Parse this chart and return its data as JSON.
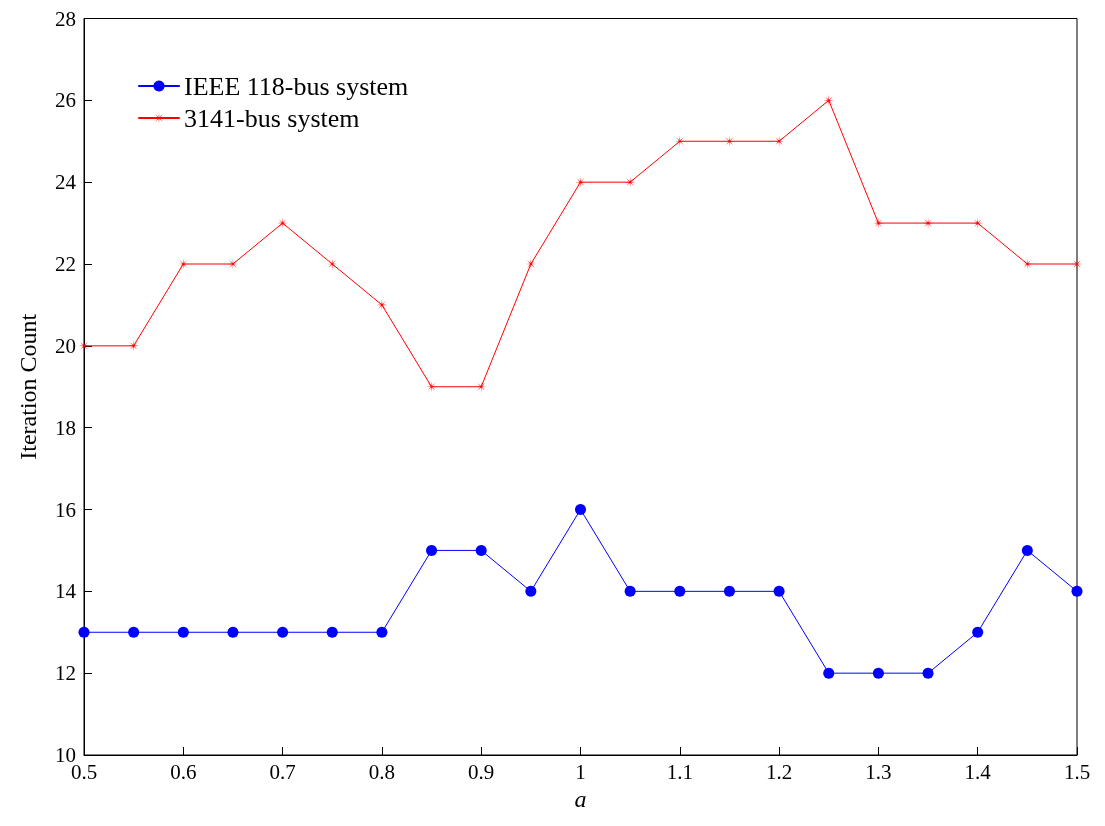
{
  "chart_data": {
    "type": "line",
    "xlabel": "a",
    "ylabel": "Iteration Count",
    "x": [
      0.5,
      0.55,
      0.6,
      0.65,
      0.7,
      0.75,
      0.8,
      0.85,
      0.9,
      0.95,
      1,
      1.05,
      1.1,
      1.15,
      1.2,
      1.25,
      1.3,
      1.35,
      1.4,
      1.45,
      1.5
    ],
    "series": [
      {
        "name": "IEEE 118-bus system",
        "color": "#0000ff",
        "marker": "circle",
        "values": [
          13,
          13,
          13,
          13,
          13,
          13,
          13,
          15,
          15,
          14,
          16,
          14,
          14,
          14,
          14,
          12,
          12,
          12,
          13,
          15,
          14
        ]
      },
      {
        "name": "3141-bus system",
        "color": "#ff0000",
        "marker": "star",
        "values": [
          20,
          20,
          22,
          22,
          23,
          22,
          21,
          19,
          19,
          22,
          24,
          24,
          25,
          25,
          25,
          26,
          23,
          23,
          23,
          22,
          22
        ]
      }
    ],
    "xlim": [
      0.5,
      1.5
    ],
    "xticks": [
      0.5,
      0.6,
      0.7,
      0.8,
      0.9,
      1,
      1.1,
      1.2,
      1.3,
      1.4,
      1.5
    ],
    "ylim": [
      10,
      28
    ],
    "yticks": [
      10,
      12,
      14,
      16,
      18,
      20,
      22,
      24,
      26,
      28
    ],
    "grid": false,
    "legend": "top left",
    "line_style": "solid"
  }
}
